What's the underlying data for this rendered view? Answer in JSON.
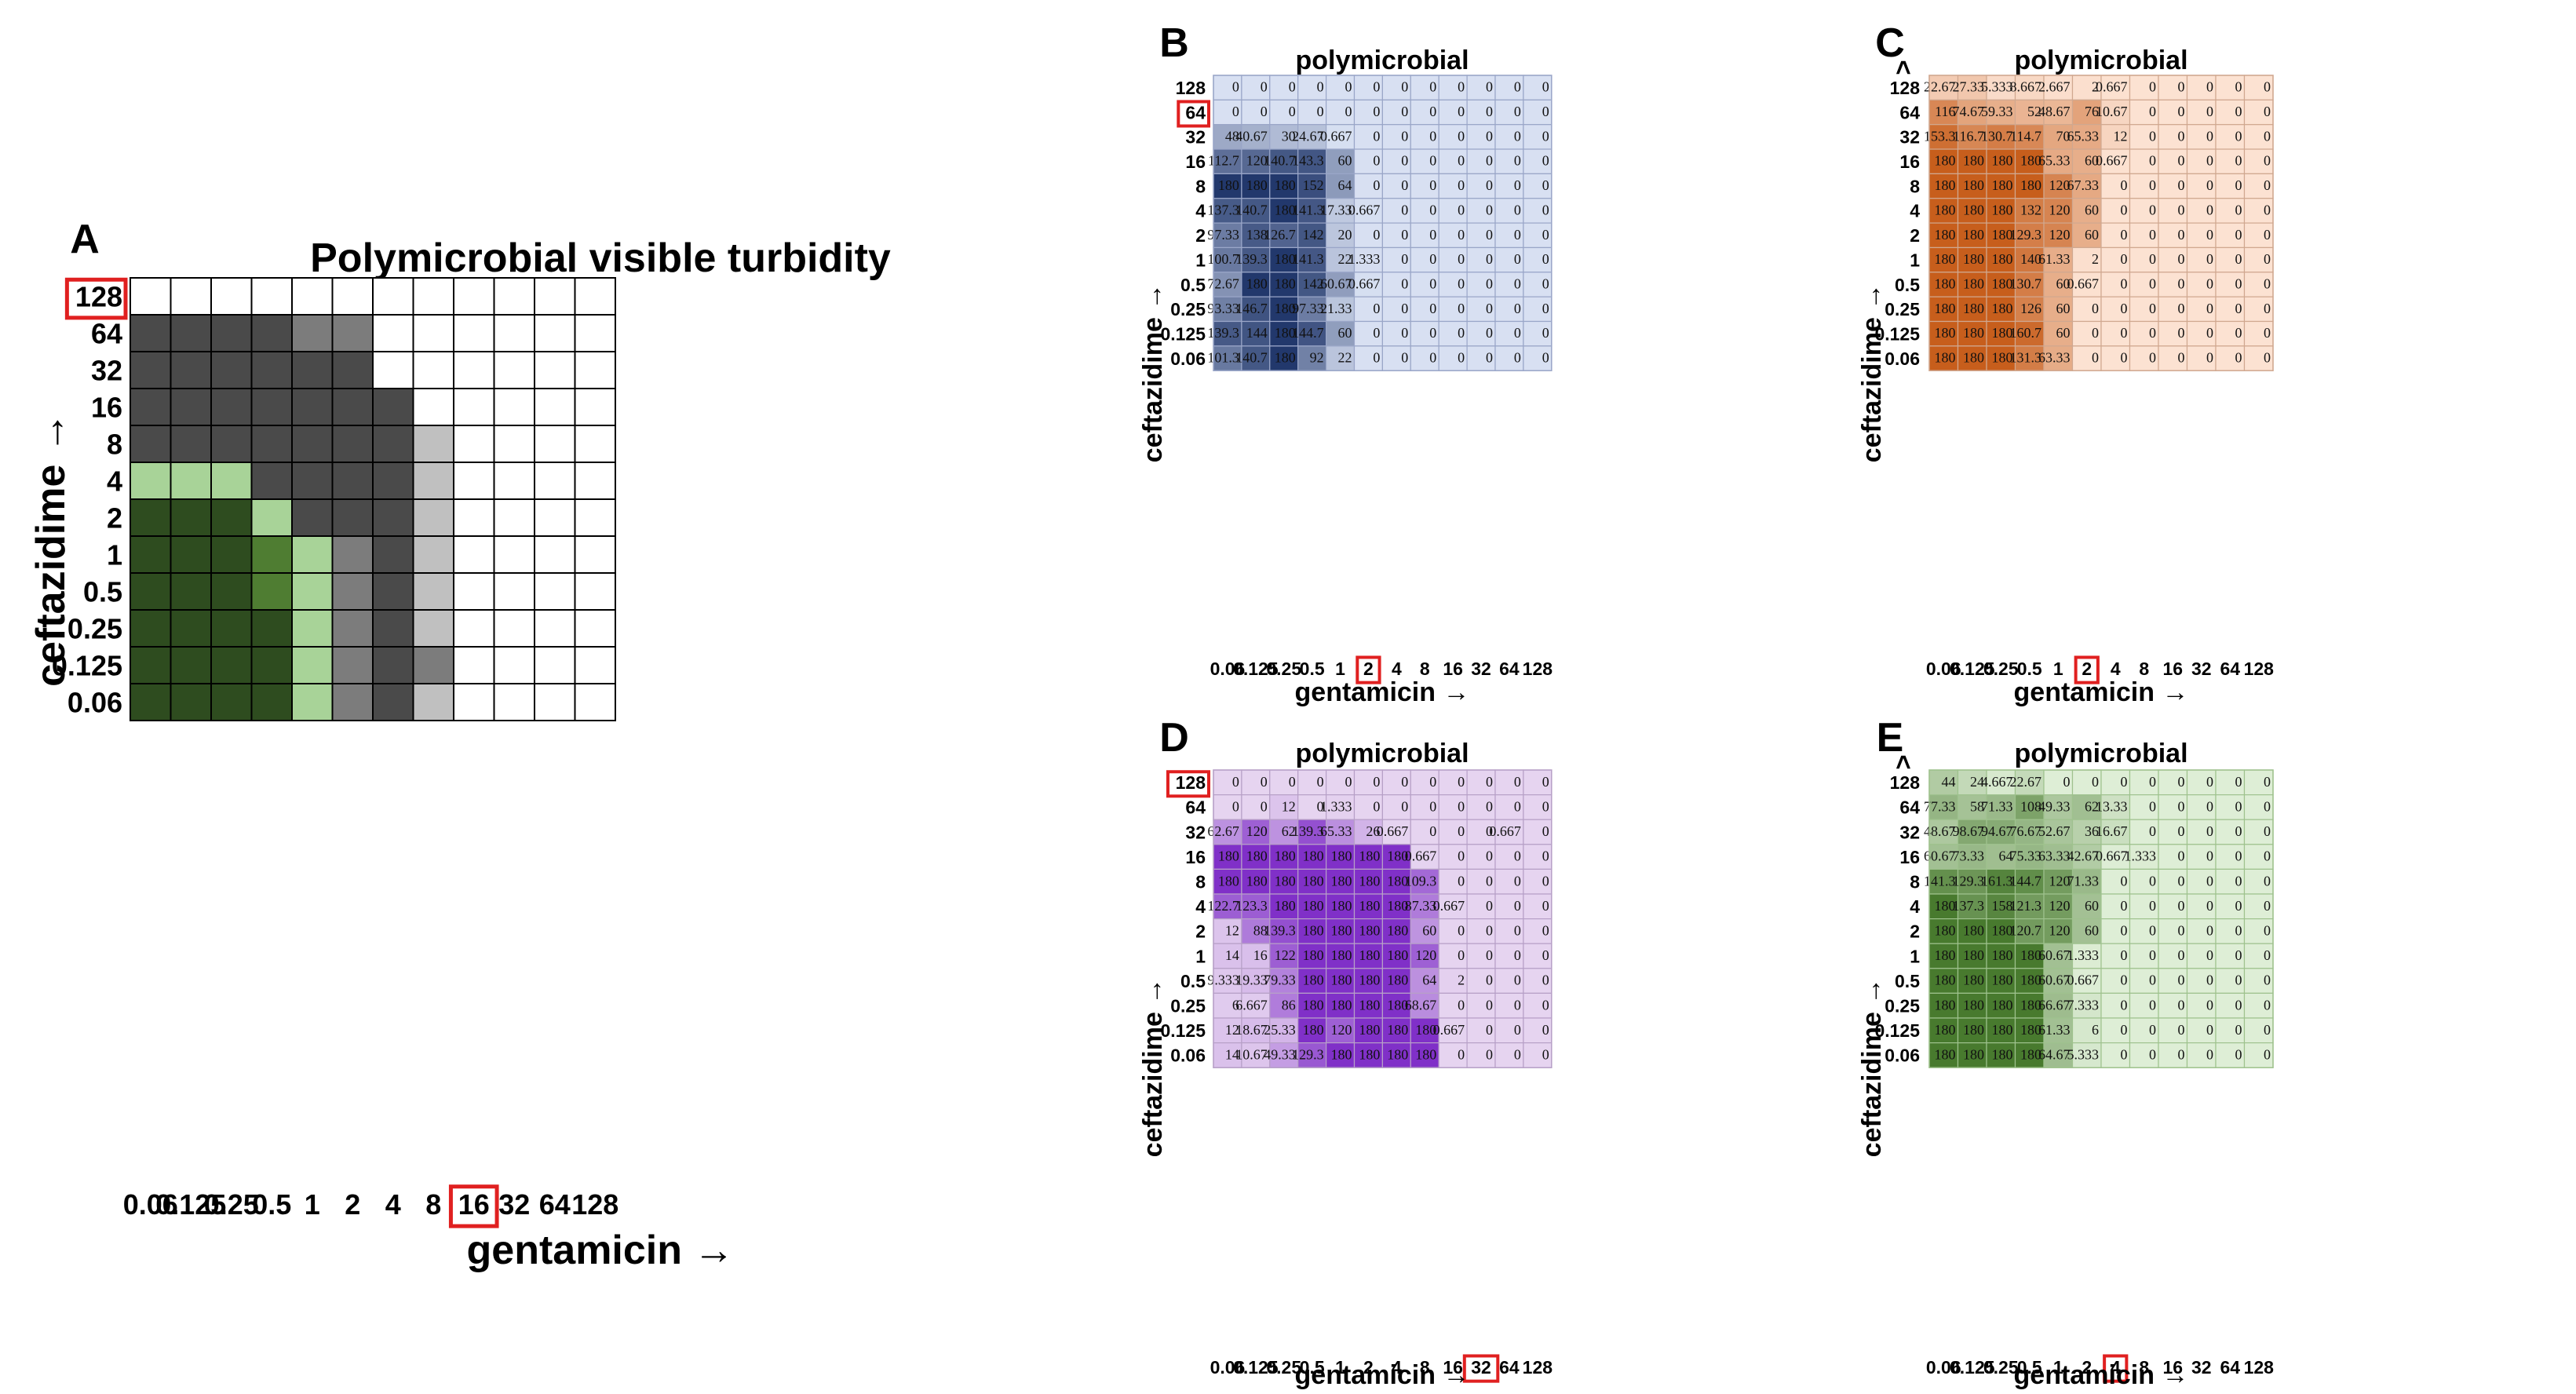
{
  "figure": {
    "palettes": {
      "A": {
        "white": "#ffffff",
        "dark": "#4a4a4a",
        "mid": "#7c7c7c",
        "light": "#c0c0c0",
        "pale_green": "#a8d398",
        "mid_green": "#4f7d32",
        "dark_green": "#2e4c1f"
      },
      "B": {
        "base": [
          216,
          224,
          242
        ],
        "top": [
          34,
          56,
          108
        ],
        "border": "#9aa6c8"
      },
      "C": {
        "base": [
          252,
          226,
          210
        ],
        "top": [
          199,
          94,
          28
        ],
        "border": "#d0a890"
      },
      "D": {
        "base": [
          230,
          212,
          240
        ],
        "top": [
          128,
          48,
          200
        ],
        "border": "#b7a0c7"
      },
      "E": {
        "base": [
          222,
          238,
          214
        ],
        "top": [
          72,
          122,
          46
        ],
        "border": "#9fc28e"
      },
      "highlight": "#e02020",
      "arrowhead": "#e02020"
    }
  },
  "chart_data": [
    {
      "panel": "A",
      "type": "heatmap",
      "title": "Polymicrobial visible turbidity",
      "xlabel": "gentamicin →",
      "ylabel": "ceftazidime →",
      "x_categories": [
        "0.06",
        "0.125",
        "0.25",
        "0.5",
        "1",
        "2",
        "4",
        "8",
        "16",
        "32",
        "64",
        "128"
      ],
      "y_categories": [
        "128",
        "64",
        "32",
        "16",
        "8",
        "4",
        "2",
        "1",
        "0.5",
        "0.25",
        "0.125",
        "0.06"
      ],
      "highlight_x": "16",
      "highlight_y": "128",
      "legend": {
        "W": "white",
        "D": "dark grey",
        "M": "mid grey",
        "L": "light grey",
        "P": "pale green",
        "G": "mid green",
        "K": "dark green"
      },
      "grid": [
        "WWWWWWWWWWWW",
        "DDDDMMWWWWWW",
        "DDDDDDWWWWWW",
        "DDDDDDDWWWWW",
        "DDDDDDDLWWWW",
        "PPPDDDDLWWWW",
        "KKKPDDDLWWWW",
        "KKKGPMDLWWWW",
        "KKKGPMDLWWWW",
        "KKKKPMDLWWWW",
        "KKKKPMDMWWWW",
        "KKKKPMDLWWWW"
      ]
    },
    {
      "panel": "B",
      "type": "heatmap",
      "title": "polymicrobial",
      "xlabel": "gentamicin →",
      "ylabel": "ceftazidime →",
      "x_categories": [
        "0.06",
        "0.125",
        "0.25",
        "0.5",
        "1",
        "2",
        "4",
        "8",
        "16",
        "32",
        "64",
        "128"
      ],
      "y_categories": [
        "128",
        "64",
        "32",
        "16",
        "8",
        "4",
        "2",
        "1",
        "0.5",
        "0.25",
        "0.125",
        "0.06"
      ],
      "highlight_x": "2",
      "highlight_y": "64",
      "rows": [
        [
          "0",
          "0",
          "0",
          "0",
          "0",
          "0",
          "0",
          "0",
          "0",
          "0",
          "0",
          "0"
        ],
        [
          "0",
          "0",
          "0",
          "0",
          "0",
          "0",
          "0",
          "0",
          "0",
          "0",
          "0",
          "0"
        ],
        [
          "48",
          "40.67",
          "30",
          "24.67",
          "0.667",
          "0",
          "0",
          "0",
          "0",
          "0",
          "0",
          "0"
        ],
        [
          "112.7",
          "120",
          "140.7",
          "143.3",
          "60",
          "0",
          "0",
          "0",
          "0",
          "0",
          "0",
          "0"
        ],
        [
          "180",
          "180",
          "180",
          "152",
          "64",
          "0",
          "0",
          "0",
          "0",
          "0",
          "0",
          "0"
        ],
        [
          "137.3",
          "140.7",
          "180",
          "141.3",
          "17.33",
          "0.667",
          "0",
          "0",
          "0",
          "0",
          "0",
          "0"
        ],
        [
          "97.33",
          "138",
          "126.7",
          "142",
          "20",
          "0",
          "0",
          "0",
          "0",
          "0",
          "0",
          "0"
        ],
        [
          "100.7",
          "139.3",
          "180",
          "141.3",
          "22",
          "1.333",
          "0",
          "0",
          "0",
          "0",
          "0",
          "0"
        ],
        [
          "72.67",
          "180",
          "180",
          "142",
          "60.67",
          "0.667",
          "0",
          "0",
          "0",
          "0",
          "0",
          "0"
        ],
        [
          "93.33",
          "146.7",
          "180",
          "97.33",
          "21.33",
          "0",
          "0",
          "0",
          "0",
          "0",
          "0",
          "0"
        ],
        [
          "139.3",
          "144",
          "180",
          "144.7",
          "60",
          "0",
          "0",
          "0",
          "0",
          "0",
          "0",
          "0"
        ],
        [
          "101.3",
          "140.7",
          "180",
          "92",
          "22",
          "0",
          "0",
          "0",
          "0",
          "0",
          "0",
          "0"
        ]
      ]
    },
    {
      "panel": "C",
      "type": "heatmap",
      "title": "polymicrobial",
      "xlabel": "gentamicin →",
      "ylabel": "ceftazidime →",
      "x_categories": [
        "0.06",
        "0.125",
        "0.25",
        "0.5",
        "1",
        "2",
        "4",
        "8",
        "16",
        "32",
        "64",
        "128"
      ],
      "y_categories": [
        "128",
        "64",
        "32",
        "16",
        "8",
        "4",
        "2",
        "1",
        "0.5",
        "0.25",
        "0.125",
        "0.06"
      ],
      "highlight_x": "2",
      "highlight_y": null,
      "greater_than_marker": ">",
      "rows": [
        [
          "22.67",
          "27.33",
          "5.333",
          "8.667",
          "2.667",
          "2",
          "0.667",
          "0",
          "0",
          "0",
          "0",
          "0"
        ],
        [
          "116",
          "74.67",
          "59.33",
          "52",
          "48.67",
          "76",
          "10.67",
          "0",
          "0",
          "0",
          "0",
          "0"
        ],
        [
          "153.3",
          "116.7",
          "130.7",
          "114.7",
          "70",
          "65.33",
          "12",
          "0",
          "0",
          "0",
          "0",
          "0"
        ],
        [
          "180",
          "180",
          "180",
          "180",
          "65.33",
          "60",
          "0.667",
          "0",
          "0",
          "0",
          "0",
          "0"
        ],
        [
          "180",
          "180",
          "180",
          "180",
          "120",
          "67.33",
          "0",
          "0",
          "0",
          "0",
          "0",
          "0"
        ],
        [
          "180",
          "180",
          "180",
          "132",
          "120",
          "60",
          "0",
          "0",
          "0",
          "0",
          "0",
          "0"
        ],
        [
          "180",
          "180",
          "180",
          "129.3",
          "120",
          "60",
          "0",
          "0",
          "0",
          "0",
          "0",
          "0"
        ],
        [
          "180",
          "180",
          "180",
          "140",
          "61.33",
          "2",
          "0",
          "0",
          "0",
          "0",
          "0",
          "0"
        ],
        [
          "180",
          "180",
          "180",
          "130.7",
          "60",
          "0.667",
          "0",
          "0",
          "0",
          "0",
          "0",
          "0"
        ],
        [
          "180",
          "180",
          "180",
          "126",
          "60",
          "0",
          "0",
          "0",
          "0",
          "0",
          "0",
          "0"
        ],
        [
          "180",
          "180",
          "180",
          "160.7",
          "60",
          "0",
          "0",
          "0",
          "0",
          "0",
          "0",
          "0"
        ],
        [
          "180",
          "180",
          "180",
          "131.3",
          "63.33",
          "0",
          "0",
          "0",
          "0",
          "0",
          "0",
          "0"
        ]
      ]
    },
    {
      "panel": "D",
      "type": "heatmap",
      "title": "polymicrobial",
      "xlabel": "gentamicin →",
      "ylabel": "ceftazidime →",
      "x_categories": [
        "0.06",
        "0.125",
        "0.25",
        "0.5",
        "1",
        "2",
        "4",
        "8",
        "16",
        "32",
        "64",
        "128"
      ],
      "y_categories": [
        "128",
        "64",
        "32",
        "16",
        "8",
        "4",
        "2",
        "1",
        "0.5",
        "0.25",
        "0.125",
        "0.06"
      ],
      "highlight_x": "32",
      "highlight_y": "128",
      "rows": [
        [
          "0",
          "0",
          "0",
          "0",
          "0",
          "0",
          "0",
          "0",
          "0",
          "0",
          "0",
          "0"
        ],
        [
          "0",
          "0",
          "12",
          "0",
          "1.333",
          "0",
          "0",
          "0",
          "0",
          "0",
          "0",
          "0"
        ],
        [
          "62.67",
          "120",
          "62",
          "139.3",
          "65.33",
          "26",
          "0.667",
          "0",
          "0",
          "0",
          "0.667",
          "0"
        ],
        [
          "180",
          "180",
          "180",
          "180",
          "180",
          "180",
          "180",
          "0.667",
          "0",
          "0",
          "0",
          "0"
        ],
        [
          "180",
          "180",
          "180",
          "180",
          "180",
          "180",
          "180",
          "109.3",
          "0",
          "0",
          "0",
          "0"
        ],
        [
          "122.7",
          "123.3",
          "180",
          "180",
          "180",
          "180",
          "180",
          "87.33",
          "0.667",
          "0",
          "0",
          "0"
        ],
        [
          "12",
          "88",
          "139.3",
          "180",
          "180",
          "180",
          "180",
          "60",
          "0",
          "0",
          "0",
          "0"
        ],
        [
          "14",
          "16",
          "122",
          "180",
          "180",
          "180",
          "180",
          "120",
          "0",
          "0",
          "0",
          "0"
        ],
        [
          "9.333",
          "19.33",
          "79.33",
          "180",
          "180",
          "180",
          "180",
          "64",
          "2",
          "0",
          "0",
          "0"
        ],
        [
          "6",
          "6.667",
          "86",
          "180",
          "180",
          "180",
          "180",
          "68.67",
          "0",
          "0",
          "0",
          "0"
        ],
        [
          "12",
          "18.67",
          "25.33",
          "180",
          "120",
          "180",
          "180",
          "180",
          "0.667",
          "0",
          "0",
          "0"
        ],
        [
          "14",
          "10.67",
          "49.33",
          "129.3",
          "180",
          "180",
          "180",
          "180",
          "0",
          "0",
          "0",
          "0"
        ]
      ]
    },
    {
      "panel": "E",
      "type": "heatmap",
      "title": "polymicrobial",
      "xlabel": "gentamicin →",
      "ylabel": "ceftazidime →",
      "x_categories": [
        "0.06",
        "0.125",
        "0.25",
        "0.5",
        "1",
        "2",
        "4",
        "8",
        "16",
        "32",
        "64",
        "128"
      ],
      "y_categories": [
        "128",
        "64",
        "32",
        "16",
        "8",
        "4",
        "2",
        "1",
        "0.5",
        "0.25",
        "0.125",
        "0.06"
      ],
      "highlight_x": "4",
      "highlight_y": null,
      "greater_than_marker": ">",
      "rows": [
        [
          "44",
          "24",
          "4.667",
          "22.67",
          "0",
          "0",
          "0",
          "0",
          "0",
          "0",
          "0",
          "0"
        ],
        [
          "77.33",
          "58",
          "71.33",
          "108",
          "49.33",
          "62",
          "13.33",
          "0",
          "0",
          "0",
          "0",
          "0"
        ],
        [
          "48.67",
          "98.67",
          "94.67",
          "76.67",
          "52.67",
          "36",
          "16.67",
          "0",
          "0",
          "0",
          "0",
          "0"
        ],
        [
          "60.67",
          "73.33",
          "64",
          "75.33",
          "63.33",
          "42.67",
          "0.667",
          "1.333",
          "0",
          "0",
          "0",
          "0"
        ],
        [
          "141.3",
          "129.3",
          "161.3",
          "144.7",
          "120",
          "71.33",
          "0",
          "0",
          "0",
          "0",
          "0",
          "0"
        ],
        [
          "180",
          "137.3",
          "158",
          "121.3",
          "120",
          "60",
          "0",
          "0",
          "0",
          "0",
          "0",
          "0"
        ],
        [
          "180",
          "180",
          "180",
          "120.7",
          "120",
          "60",
          "0",
          "0",
          "0",
          "0",
          "0",
          "0"
        ],
        [
          "180",
          "180",
          "180",
          "180",
          "60.67",
          "1.333",
          "0",
          "0",
          "0",
          "0",
          "0",
          "0"
        ],
        [
          "180",
          "180",
          "180",
          "180",
          "60.67",
          "0.667",
          "0",
          "0",
          "0",
          "0",
          "0",
          "0"
        ],
        [
          "180",
          "180",
          "180",
          "180",
          "66.67",
          "7.333",
          "0",
          "0",
          "0",
          "0",
          "0",
          "0"
        ],
        [
          "180",
          "180",
          "180",
          "180",
          "61.33",
          "6",
          "0",
          "0",
          "0",
          "0",
          "0",
          "0"
        ],
        [
          "180",
          "180",
          "180",
          "180",
          "64.67",
          "5.333",
          "0",
          "0",
          "0",
          "0",
          "0",
          "0"
        ]
      ]
    }
  ]
}
